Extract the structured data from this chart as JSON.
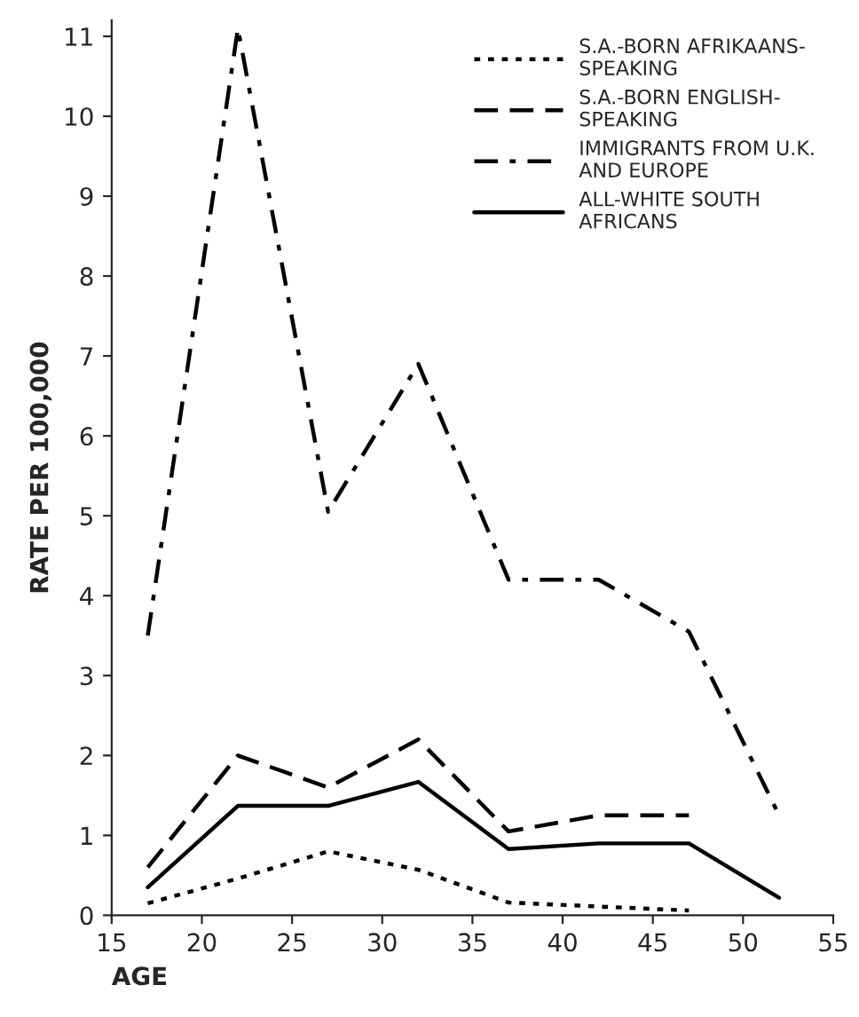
{
  "chart_data": {
    "type": "line",
    "xlabel": "AGE",
    "ylabel": "RATE PER 100,000",
    "x": [
      17,
      22,
      27,
      32,
      37,
      42,
      47,
      52
    ],
    "series": [
      {
        "name": "S.A.-BORN AFRIKAANS-\nSPEAKING",
        "color": "#000000",
        "line_style": "dotted",
        "values": [
          0.15,
          0.46,
          0.8,
          0.57,
          0.16,
          0.11,
          0.06,
          null
        ]
      },
      {
        "name": "S.A.-BORN ENGLISH-\nSPEAKING",
        "color": "#000000",
        "line_style": "dashed",
        "values": [
          0.6,
          2.0,
          1.6,
          2.2,
          1.05,
          1.25,
          1.25,
          null
        ]
      },
      {
        "name": "IMMIGRANTS FROM U.K.\nAND EUROPE",
        "color": "#000000",
        "line_style": "dashdot",
        "values": [
          3.5,
          11.1,
          5.05,
          6.9,
          4.2,
          4.2,
          3.55,
          1.25
        ]
      },
      {
        "name": "ALL-WHITE SOUTH\nAFRICANS",
        "color": "#000000",
        "line_style": "solid",
        "values": [
          0.35,
          1.37,
          1.37,
          1.67,
          0.83,
          0.9,
          0.9,
          0.22
        ]
      }
    ],
    "xlim": [
      15,
      55
    ],
    "xticks": [
      15,
      20,
      25,
      30,
      35,
      40,
      45,
      50,
      55
    ],
    "ylim": [
      0,
      11.2
    ],
    "yticks": [
      0,
      1,
      2,
      3,
      4,
      5,
      6,
      7,
      8,
      9,
      10,
      11
    ],
    "grid": false,
    "legend": "top right",
    "marker": "none"
  }
}
